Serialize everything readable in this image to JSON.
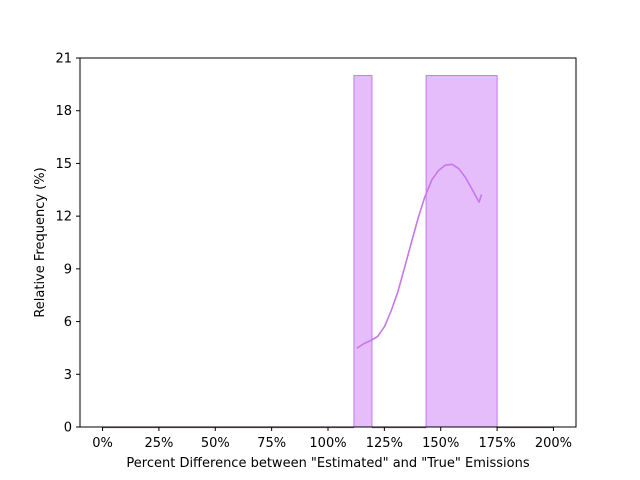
{
  "chart_data": {
    "type": "bar",
    "title": "",
    "xlabel": "Percent Difference between \"Estimated\" and \"True\" Emissions",
    "ylabel": "Relative Frequency (%)",
    "xlim": [
      -10,
      210
    ],
    "ylim": [
      0,
      21
    ],
    "x_ticks": [
      0,
      25,
      50,
      75,
      100,
      125,
      150,
      175,
      200
    ],
    "x_tick_labels": [
      "0%",
      "25%",
      "50%",
      "75%",
      "100%",
      "125%",
      "150%",
      "175%",
      "200%"
    ],
    "y_ticks": [
      0,
      3,
      6,
      9,
      12,
      15,
      18,
      21
    ],
    "y_tick_labels": [
      "0",
      "3",
      "6",
      "9",
      "12",
      "15",
      "18",
      "21"
    ],
    "bars": [
      {
        "x_start": 0,
        "x_end": 111.5,
        "value": 0
      },
      {
        "x_start": 111.5,
        "x_end": 119.5,
        "value": 20
      },
      {
        "x_start": 119.5,
        "x_end": 143.5,
        "value": 0
      },
      {
        "x_start": 143.5,
        "x_end": 175,
        "value": 20
      },
      {
        "x_start": 175,
        "x_end": 200,
        "value": 0
      }
    ],
    "kde_line": {
      "x": [
        113,
        116,
        119,
        122,
        125,
        128,
        131,
        134,
        137,
        140,
        143,
        146,
        149,
        152,
        155,
        158,
        161,
        164,
        167,
        168
      ],
      "y": [
        4.5,
        4.75,
        4.92,
        5.15,
        5.7,
        6.6,
        7.7,
        9.1,
        10.5,
        11.9,
        13.1,
        14.05,
        14.6,
        14.9,
        14.95,
        14.7,
        14.2,
        13.5,
        12.8,
        13.2
      ]
    },
    "colors": {
      "bar_fill": "#e4bdfa",
      "bar_edge": "#c777ee",
      "line": "#c777ee",
      "baseline": "#7b55d6"
    },
    "grid": false,
    "legend": "none"
  }
}
